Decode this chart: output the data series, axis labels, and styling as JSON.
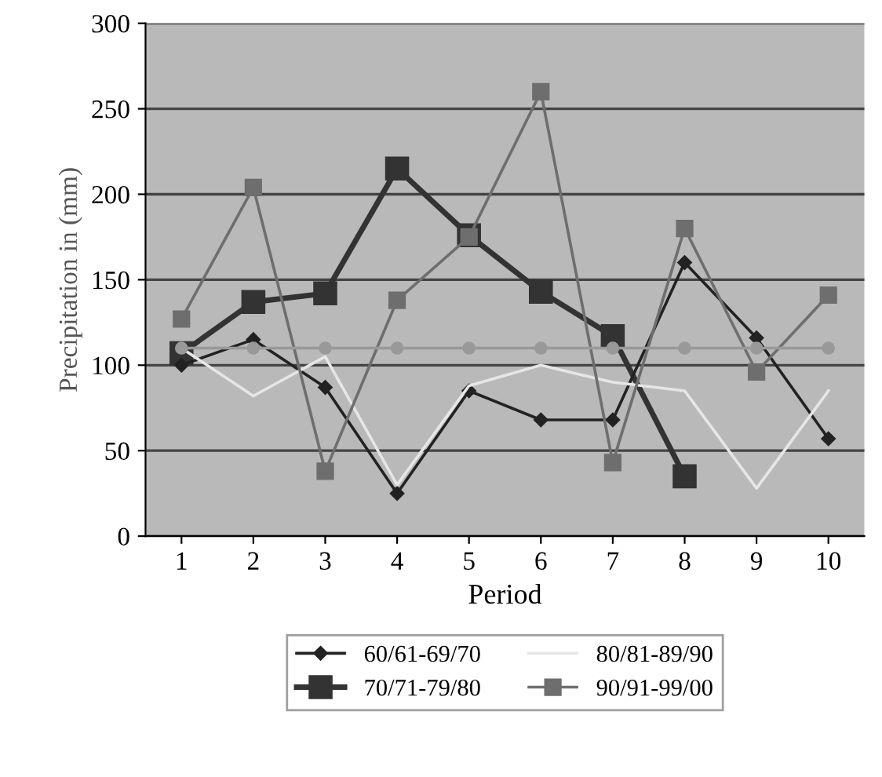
{
  "chart_data": {
    "type": "line",
    "xlabel": "Period",
    "ylabel": "Precipitation in (mm)",
    "categories": [
      "1",
      "2",
      "3",
      "4",
      "5",
      "6",
      "7",
      "8",
      "9",
      "10"
    ],
    "series": [
      {
        "name": "60/61-69/70",
        "color": "#222222",
        "marker": "diamond",
        "values": [
          100,
          115,
          87,
          25,
          85,
          68,
          68,
          160,
          116,
          57
        ]
      },
      {
        "name": "70/71-79/80",
        "color": "#333333",
        "marker": "square",
        "values": [
          107,
          137,
          142,
          215,
          176,
          143,
          117,
          35,
          null,
          null
        ]
      },
      {
        "name": "80/81-89/90",
        "color": "#e6e6e6",
        "marker": "none",
        "values": [
          110,
          82,
          105,
          30,
          88,
          100,
          90,
          85,
          28,
          85
        ]
      },
      {
        "name": "90/91-99/00",
        "color": "#6e6e6e",
        "marker": "square",
        "values": [
          127,
          204,
          38,
          138,
          175,
          260,
          43,
          180,
          96,
          141
        ]
      },
      {
        "color": "#999999",
        "marker": "circle",
        "values": [
          110,
          110,
          110,
          110,
          110,
          110,
          110,
          110,
          110,
          110
        ]
      }
    ],
    "ylim": [
      0,
      300
    ],
    "yticks": [
      0,
      50,
      100,
      150,
      200,
      250,
      300
    ],
    "grid": "y",
    "legend": "bottom"
  }
}
